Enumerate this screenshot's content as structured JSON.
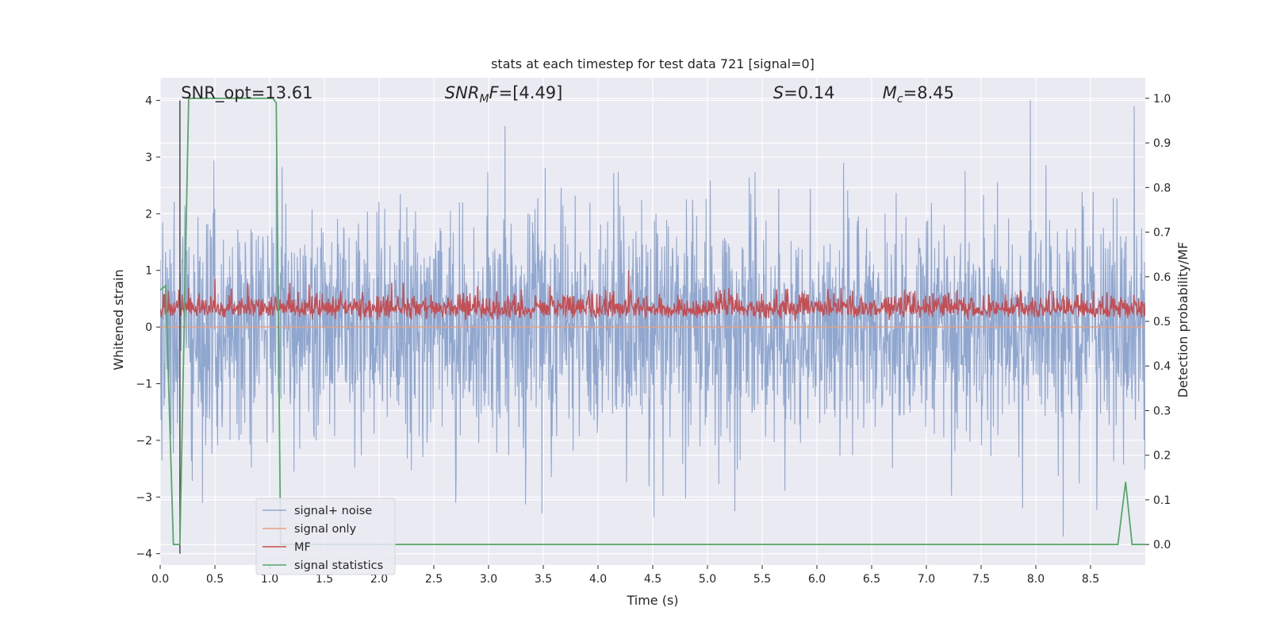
{
  "chart_data": {
    "type": "line",
    "title": "stats at each timestep for test data 721 [signal=0]",
    "xlabel": "Time (s)",
    "ylabel": "Whitened strain",
    "y2label": "Detection probability/MF",
    "xlim": [
      0.0,
      9.0
    ],
    "ylim": [
      -4.2,
      4.4
    ],
    "y2lim": [
      -0.046,
      1.046
    ],
    "x_ticks": [
      "0.0",
      "0.5",
      "1.0",
      "1.5",
      "2.0",
      "2.5",
      "3.0",
      "3.5",
      "4.0",
      "4.5",
      "5.0",
      "5.5",
      "6.0",
      "6.5",
      "7.0",
      "7.5",
      "8.0",
      "8.5"
    ],
    "y_ticks": [
      "4",
      "3",
      "2",
      "1",
      "0",
      "−1",
      "−2",
      "−3",
      "−4"
    ],
    "y2_ticks": [
      "1.0",
      "0.9",
      "0.8",
      "0.7",
      "0.6",
      "0.5",
      "0.4",
      "0.3",
      "0.2",
      "0.1",
      "0.0"
    ],
    "grid": true,
    "legend_position": "lower-left",
    "annotations": [
      {
        "text": "SNR_opt=13.61",
        "x": 0.19
      },
      {
        "prefix": "SNR",
        "sub": "M",
        "suffix": "F=[4.49]",
        "x": 2.6
      },
      {
        "prefix": "S",
        "sub": "",
        "suffix": "=0.14",
        "x": 5.6
      },
      {
        "prefix": "M",
        "sub": "c",
        "suffix": "=8.45",
        "x": 6.6
      }
    ],
    "vline": {
      "x": 0.18,
      "y": [
        -4.0,
        4.0
      ],
      "color": "#404040"
    },
    "series": [
      {
        "name": "signal+ noise",
        "axis": "left",
        "color": "#8fa6cf",
        "sampled": true,
        "noise_sigma": 1.0,
        "spikes": [
          [
            1.06,
            3.05
          ],
          [
            3.15,
            3.55
          ],
          [
            7.95,
            4.0
          ],
          [
            8.9,
            3.9
          ],
          [
            8.25,
            -3.7
          ],
          [
            5.25,
            -3.25
          ],
          [
            2.7,
            -3.1
          ],
          [
            7.88,
            -3.2
          ]
        ]
      },
      {
        "name": "signal only",
        "axis": "left",
        "color": "#e8a080",
        "x": [
          0.0,
          9.0
        ],
        "y": [
          0.0,
          0.0
        ]
      },
      {
        "name": "MF",
        "axis": "left",
        "color": "#c44e52",
        "sampled": true,
        "mean": 0.3,
        "spikes": [
          [
            4.28,
            1.0
          ],
          [
            0.5,
            0.85
          ]
        ]
      },
      {
        "name": "signal statistics",
        "axis": "right",
        "color": "#55a868",
        "x": [
          0.0,
          0.05,
          0.12,
          0.18,
          0.26,
          1.03,
          1.06,
          1.1,
          1.14,
          8.75,
          8.82,
          8.88,
          9.0
        ],
        "y": [
          0.57,
          0.58,
          0.0,
          0.0,
          1.0,
          1.0,
          0.99,
          0.0,
          0.0,
          0.0,
          0.14,
          0.0,
          0.0
        ]
      }
    ],
    "background": "#eaeaf2",
    "grid_color": "#ffffff"
  }
}
